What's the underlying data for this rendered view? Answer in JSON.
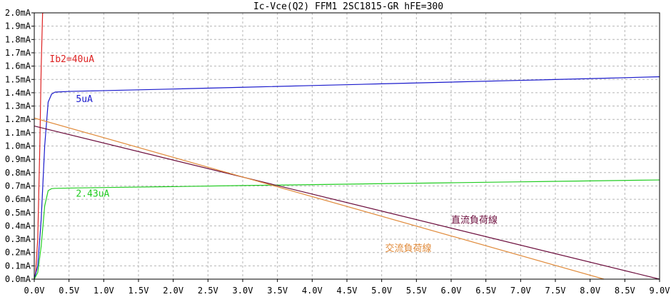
{
  "chart_data": {
    "type": "line",
    "title": "Ic-Vce(Q2) FFM1 2SC1815-GR hFE=300",
    "xlabel": "",
    "ylabel": "",
    "xlim": [
      0,
      9.0
    ],
    "ylim": [
      0,
      2.0
    ],
    "x_ticks": [
      "0.0V",
      "0.5V",
      "1.0V",
      "1.5V",
      "2.0V",
      "2.5V",
      "3.0V",
      "3.5V",
      "4.0V",
      "4.5V",
      "5.0V",
      "5.5V",
      "6.0V",
      "6.5V",
      "7.0V",
      "7.5V",
      "8.0V",
      "8.5V",
      "9.0V"
    ],
    "y_ticks": [
      "0.0mA",
      "0.1mA",
      "0.2mA",
      "0.3mA",
      "0.4mA",
      "0.5mA",
      "0.6mA",
      "0.7mA",
      "0.8mA",
      "0.9mA",
      "1.0mA",
      "1.1mA",
      "1.2mA",
      "1.3mA",
      "1.4mA",
      "1.5mA",
      "1.6mA",
      "1.7mA",
      "1.8mA",
      "1.9mA",
      "2.0mA"
    ],
    "grid": true,
    "series": [
      {
        "name": "Ib2=40uA",
        "color": "#dd2222",
        "x": [
          0.0,
          0.02,
          0.05,
          0.08,
          0.1,
          0.12,
          0.14
        ],
        "y": [
          0.0,
          0.05,
          0.3,
          1.0,
          1.6,
          2.0,
          2.0
        ]
      },
      {
        "name": "5uA",
        "color": "#1a1acc",
        "x": [
          0.0,
          0.05,
          0.1,
          0.15,
          0.2,
          0.25,
          0.3,
          0.5,
          1.0,
          2.0,
          3.0,
          4.0,
          5.0,
          6.0,
          7.0,
          8.0,
          9.0
        ],
        "y": [
          0.0,
          0.1,
          0.45,
          1.0,
          1.33,
          1.39,
          1.405,
          1.41,
          1.416,
          1.428,
          1.441,
          1.454,
          1.467,
          1.48,
          1.493,
          1.506,
          1.52
        ]
      },
      {
        "name": "2.43uA",
        "color": "#22cc22",
        "x": [
          0.0,
          0.05,
          0.1,
          0.15,
          0.2,
          0.25,
          0.3,
          0.5,
          1.0,
          2.0,
          3.0,
          4.0,
          5.0,
          6.0,
          7.0,
          8.0,
          9.0
        ],
        "y": [
          0.0,
          0.05,
          0.25,
          0.55,
          0.665,
          0.68,
          0.682,
          0.684,
          0.688,
          0.695,
          0.703,
          0.71,
          0.717,
          0.724,
          0.731,
          0.738,
          0.745
        ]
      },
      {
        "name": "直流負荷線",
        "color": "#6a0a3a",
        "x": [
          0.0,
          9.0
        ],
        "y": [
          1.15,
          0.0
        ]
      },
      {
        "name": "交流負荷線",
        "color": "#e08a3a",
        "x": [
          0.0,
          8.2
        ],
        "y": [
          1.21,
          0.0
        ]
      }
    ],
    "annotations": [
      {
        "text": "Ib2=40uA",
        "x": 0.22,
        "y": 1.63,
        "color": "#dd2222"
      },
      {
        "text": "5uA",
        "x": 0.6,
        "y": 1.33,
        "color": "#1a1acc"
      },
      {
        "text": "2.43uA",
        "x": 0.6,
        "y": 0.62,
        "color": "#22cc22"
      },
      {
        "text": "直流負荷線",
        "x": 6.0,
        "y": 0.42,
        "color": "#6a0a3a"
      },
      {
        "text": "交流負荷線",
        "x": 5.05,
        "y": 0.21,
        "color": "#e08a3a"
      }
    ]
  }
}
